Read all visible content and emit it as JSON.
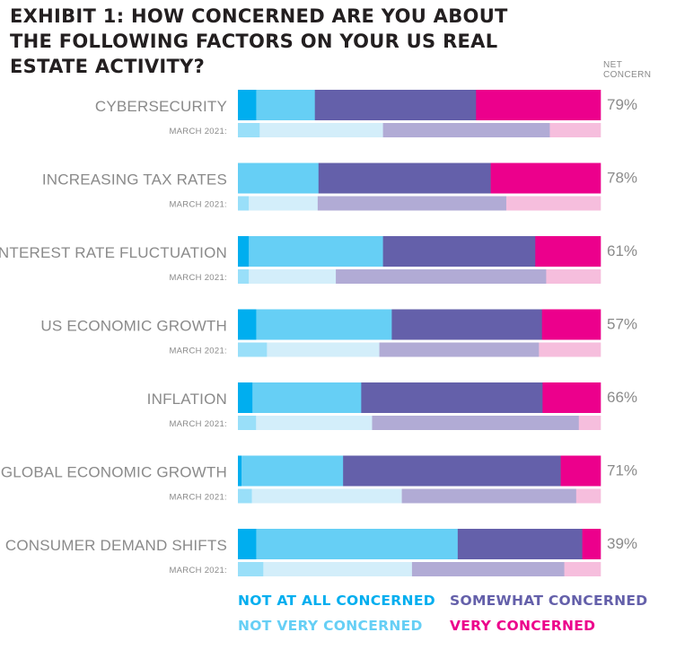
{
  "header": {
    "title_lines": [
      "EXHIBIT 1: HOW CONCERNED ARE YOU ABOUT",
      "THE FOLLOWING FACTORS ON YOUR US REAL",
      "ESTATE ACTIVITY?"
    ],
    "net_concern_lines": [
      "NET",
      "CONCERN"
    ]
  },
  "colors": {
    "not_at_all": "#00aeef",
    "not_very": "#66cff5",
    "somewhat": "#6460aa",
    "very": "#ec008c",
    "not_at_all_prior": "#99dff9",
    "not_very_prior": "#d3eefa",
    "somewhat_prior": "#b1abd5",
    "very_prior": "#f6bedd"
  },
  "legend": [
    {
      "key": "not_at_all",
      "label": "NOT AT ALL CONCERNED"
    },
    {
      "key": "somewhat",
      "label": "SOMEWHAT CONCERNED"
    },
    {
      "key": "not_very",
      "label": "NOT VERY CONCERNED"
    },
    {
      "key": "very",
      "label": "VERY CONCERNED"
    }
  ],
  "chart_data": {
    "type": "bar",
    "orientation": "horizontal-stacked-100",
    "title": "EXHIBIT 1: HOW CONCERNED ARE YOU ABOUT THE FOLLOWING FACTORS ON YOUR US REAL ESTATE ACTIVITY?",
    "stack_order": [
      "Not at all concerned",
      "Not very concerned",
      "Somewhat concerned",
      "Very concerned"
    ],
    "prior_label": "MARCH 2021:",
    "categories": [
      "CYBERSECURITY",
      "INCREASING TAX RATES",
      "INTEREST RATE FLUCTUATION",
      "US ECONOMIC GROWTH",
      "INFLATION",
      "GLOBAL ECONOMIC GROWTH",
      "CONSUMER DEMAND SHIFTS"
    ],
    "net_concern": [
      "79%",
      "78%",
      "61%",
      "57%",
      "66%",
      "71%",
      "39%"
    ],
    "current": [
      [
        5,
        16,
        44,
        34
      ],
      [
        0,
        22,
        47,
        30
      ],
      [
        3,
        37,
        42,
        18
      ],
      [
        5,
        37,
        41,
        16
      ],
      [
        4,
        30,
        50,
        16
      ],
      [
        1,
        28,
        60,
        11
      ],
      [
        5,
        55,
        34,
        5
      ]
    ],
    "march_2021": [
      [
        6,
        34,
        46,
        14
      ],
      [
        3,
        19,
        52,
        26
      ],
      [
        3,
        24,
        58,
        15
      ],
      [
        8,
        31,
        44,
        17
      ],
      [
        5,
        32,
        57,
        6
      ],
      [
        4,
        43,
        50,
        7
      ],
      [
        7,
        41,
        42,
        10
      ]
    ],
    "xlim": [
      0,
      100
    ]
  }
}
